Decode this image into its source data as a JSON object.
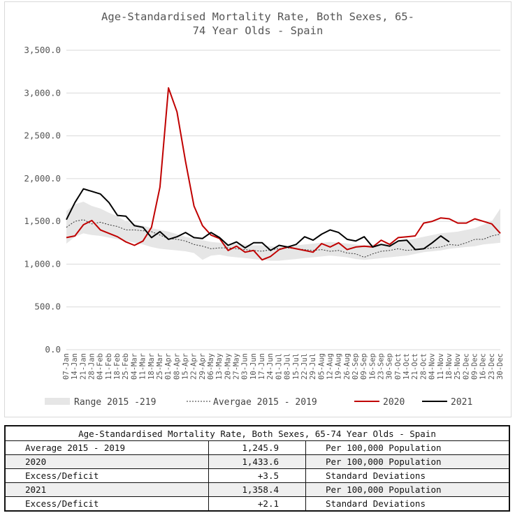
{
  "chart_data": {
    "type": "line",
    "title_line1": "Age-Standardised Mortality Rate, Both Sexes, 65-",
    "title_line2": "74 Year Olds - Spain",
    "ylim": [
      0,
      3500
    ],
    "y_ticks": [
      "0.0",
      "500.0",
      "1,000.0",
      "1,500.0",
      "2,000.0",
      "2,500.0",
      "3,000.0",
      "3,500.0"
    ],
    "y_tick_values": [
      0,
      500,
      1000,
      1500,
      2000,
      2500,
      3000,
      3500
    ],
    "x_tick_labels": [
      "07-Jan",
      "14-Jan",
      "21-Jan",
      "28-Jan",
      "04-Feb",
      "11-Feb",
      "18-Feb",
      "25-Feb",
      "04-Mar",
      "11-Mar",
      "18-Mar",
      "25-Mar",
      "01-Apr",
      "08-Apr",
      "15-Apr",
      "22-Apr",
      "29-Apr",
      "06-May",
      "13-May",
      "20-May",
      "27-May",
      "03-Jun",
      "10-Jun",
      "17-Jun",
      "24-Jun",
      "01-Jul",
      "08-Jul",
      "15-Jul",
      "22-Jul",
      "29-Jul",
      "05-Aug",
      "12-Aug",
      "19-Aug",
      "26-Aug",
      "02-Sep",
      "09-Sep",
      "16-Sep",
      "23-Sep",
      "30-Sep",
      "07-Oct",
      "14-Oct",
      "21-Oct",
      "28-Oct",
      "04-Nov",
      "11-Nov",
      "18-Nov",
      "25-Nov",
      "02-Dec",
      "09-Dec",
      "16-Dec",
      "23-Dec",
      "30-Dec"
    ],
    "series": [
      {
        "name": "Range 2015 -219",
        "kind": "range",
        "color": "#e6e6e6",
        "upper": [
          1620,
          1700,
          1730,
          1680,
          1650,
          1600,
          1560,
          1500,
          1470,
          1450,
          1420,
          1400,
          1380,
          1350,
          1320,
          1300,
          1280,
          1260,
          1250,
          1240,
          1240,
          1230,
          1220,
          1220,
          1210,
          1200,
          1210,
          1220,
          1230,
          1240,
          1250,
          1260,
          1250,
          1240,
          1230,
          1220,
          1230,
          1240,
          1250,
          1260,
          1280,
          1300,
          1320,
          1340,
          1360,
          1370,
          1380,
          1400,
          1420,
          1460,
          1500,
          1650
        ],
        "lower": [
          1240,
          1320,
          1360,
          1340,
          1330,
          1310,
          1290,
          1270,
          1250,
          1230,
          1200,
          1180,
          1170,
          1160,
          1150,
          1130,
          1050,
          1100,
          1110,
          1090,
          1080,
          1070,
          1060,
          1050,
          1040,
          1040,
          1050,
          1060,
          1070,
          1080,
          1090,
          1100,
          1090,
          1080,
          1060,
          1050,
          1060,
          1070,
          1080,
          1090,
          1100,
          1120,
          1140,
          1150,
          1160,
          1180,
          1190,
          1200,
          1210,
          1230,
          1240,
          1250
        ]
      },
      {
        "name": "Avergae 2015 - 2019",
        "kind": "dashed",
        "color": "#333333",
        "values": [
          1430,
          1500,
          1520,
          1470,
          1490,
          1460,
          1440,
          1400,
          1400,
          1390,
          1380,
          1340,
          1300,
          1290,
          1270,
          1230,
          1210,
          1180,
          1190,
          1190,
          1180,
          1170,
          1160,
          1150,
          1170,
          1180,
          1190,
          1180,
          1170,
          1160,
          1170,
          1150,
          1160,
          1130,
          1120,
          1080,
          1120,
          1150,
          1160,
          1180,
          1160,
          1170,
          1180,
          1190,
          1200,
          1230,
          1220,
          1250,
          1290,
          1290,
          1330,
          1350
        ]
      },
      {
        "name": "2020",
        "kind": "solid",
        "color": "#c00000",
        "values": [
          1310,
          1330,
          1460,
          1510,
          1400,
          1360,
          1320,
          1260,
          1220,
          1270,
          1430,
          1900,
          3060,
          2780,
          2200,
          1680,
          1450,
          1340,
          1300,
          1160,
          1210,
          1140,
          1160,
          1050,
          1090,
          1170,
          1200,
          1180,
          1160,
          1140,
          1240,
          1200,
          1250,
          1170,
          1200,
          1210,
          1200,
          1280,
          1230,
          1310,
          1320,
          1330,
          1480,
          1500,
          1540,
          1530,
          1480,
          1480,
          1530,
          1500,
          1470,
          1360
        ]
      },
      {
        "name": "2021",
        "kind": "solid",
        "color": "#000000",
        "values": [
          1520,
          1720,
          1880,
          1850,
          1820,
          1720,
          1570,
          1560,
          1450,
          1430,
          1310,
          1380,
          1290,
          1320,
          1370,
          1310,
          1300,
          1370,
          1310,
          1220,
          1260,
          1190,
          1250,
          1250,
          1160,
          1220,
          1200,
          1230,
          1320,
          1280,
          1350,
          1400,
          1370,
          1290,
          1270,
          1320,
          1200,
          1230,
          1210,
          1270,
          1280,
          1170,
          1180,
          1250,
          1330,
          1260
        ]
      }
    ],
    "legend": [
      "Range 2015 -219",
      "Avergae 2015 - 2019",
      "2020",
      "2021"
    ],
    "legend_position": "bottom",
    "grid": true
  },
  "stats": {
    "title": "Age-Standardised Mortality Rate, Both Sexes, 65-74 Year Olds - Spain",
    "rows": [
      {
        "label": "Average 2015 - 2019",
        "value": "1,245.9",
        "unit": "Per 100,000 Population"
      },
      {
        "label": "2020",
        "value": "1,433.6",
        "unit": "Per 100,000 Population"
      },
      {
        "label": "Excess/Deficit",
        "value": "+3.5",
        "unit": "Standard Deviations"
      },
      {
        "label": "2021",
        "value": "1,358.4",
        "unit": "Per 100,000 Population"
      },
      {
        "label": "Excess/Deficit",
        "value": "+2.1",
        "unit": "Standard Deviations"
      }
    ]
  }
}
